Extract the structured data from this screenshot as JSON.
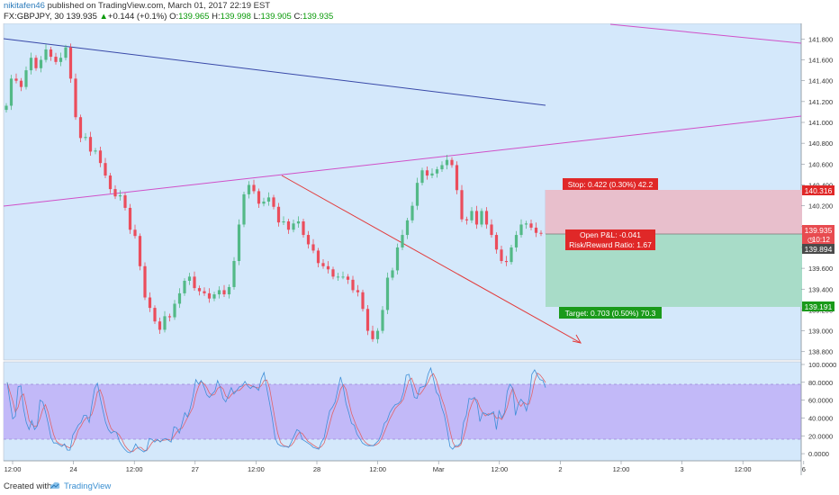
{
  "header": {
    "user": "nikitafen46",
    "published": "published on TradingView.com, March 01, 2017 22:19 EST",
    "symbol": "FX:GBPJPY, 30",
    "last": "139.935",
    "change": "+0.144 (+0.1%)",
    "open_label": "O:",
    "open": "139.965",
    "high_label": "H:",
    "high": "139.998",
    "low_label": "L:",
    "low": "139.905",
    "close_label": "C:",
    "close": "139.935"
  },
  "price_axis": {
    "labels": [
      "141.800",
      "141.600",
      "141.400",
      "141.200",
      "141.000",
      "140.800",
      "140.600",
      "140.400",
      "140.200",
      "140.000",
      "139.800",
      "139.600",
      "139.400",
      "139.200",
      "139.000",
      "138.800"
    ],
    "markers": {
      "stop": "140.316",
      "last": "139.935",
      "countdown": "10:12",
      "entry": "139.894",
      "target": "139.191"
    }
  },
  "oscillator_axis": {
    "labels": [
      "100.0000",
      "80.0000",
      "60.0000",
      "40.0000",
      "20.0000",
      "0.0000"
    ]
  },
  "time_axis": {
    "labels": [
      "12:00",
      "24",
      "12:00",
      "27",
      "12:00",
      "28",
      "12:00",
      "Mar",
      "12:00",
      "2",
      "12:00",
      "3",
      "12:00",
      "6"
    ]
  },
  "position_tool": {
    "stop_label": "Stop: 0.422 (0.30%) 42.2",
    "pnl_label": "Open P&L: -0.041",
    "rr_label": "Risk/Reward Ratio: 1.67",
    "target_label": "Target: 0.703 (0.50%) 70.3"
  },
  "footer": {
    "created_with": "Created with",
    "brand": "TradingView"
  },
  "colors": {
    "pane_bg": "#d4e8fb",
    "bull": "#53b987",
    "bear": "#eb4d5c",
    "stop_zone": "#e8bfcc",
    "target_zone": "#a8dcc8",
    "stoch_band": "#c2b9f8",
    "trend_blue": "#3848a8",
    "trend_magenta": "#d050c8",
    "arrow_red": "#e23b3b",
    "stop_box": "#e02828",
    "target_box": "#1a9a1a"
  },
  "chart_data": {
    "type": "candlestick",
    "ylim": [
      138.72,
      141.95
    ],
    "oscillator_ylim": [
      -8,
      103
    ],
    "closes": [
      141.16,
      141.42,
      141.4,
      141.34,
      141.5,
      141.62,
      141.52,
      141.6,
      141.7,
      141.63,
      141.58,
      141.62,
      141.72,
      141.42,
      141.05,
      140.85,
      140.86,
      140.72,
      140.73,
      140.61,
      140.49,
      140.36,
      140.29,
      140.3,
      140.18,
      139.97,
      139.91,
      139.62,
      139.32,
      139.22,
      139.09,
      139.01,
      139.14,
      139.13,
      139.26,
      139.36,
      139.48,
      139.52,
      139.41,
      139.38,
      139.36,
      139.31,
      139.35,
      139.39,
      139.35,
      139.42,
      139.67,
      140.02,
      140.31,
      140.4,
      140.34,
      140.22,
      140.24,
      140.28,
      140.19,
      140.04,
      140.05,
      139.97,
      140.03,
      140.05,
      139.92,
      139.83,
      139.77,
      139.65,
      139.62,
      139.59,
      139.52,
      139.52,
      139.52,
      139.49,
      139.39,
      139.37,
      139.21,
      139.0,
      138.92,
      139.0,
      139.2,
      139.51,
      139.58,
      139.8,
      139.92,
      140.06,
      140.2,
      140.42,
      140.54,
      140.49,
      140.51,
      140.55,
      140.59,
      140.64,
      140.59,
      140.35,
      140.07,
      140.06,
      140.15,
      140.02,
      140.15,
      140.02,
      139.92,
      139.78,
      139.67,
      139.66,
      139.8,
      139.92,
      140.02,
      140.03,
      139.99,
      139.94,
      139.935
    ],
    "stochastic_k": [
      80,
      59,
      39,
      42,
      75,
      76,
      50,
      35,
      27,
      37,
      27,
      31,
      60,
      58,
      47,
      34,
      18,
      12,
      12,
      10,
      8,
      11,
      4,
      4,
      21,
      26,
      32,
      35,
      43,
      43,
      35,
      55,
      73,
      79,
      63,
      49,
      35,
      27,
      23,
      25,
      24,
      14,
      9,
      5,
      2,
      1,
      4,
      11,
      6,
      4,
      2,
      4,
      17,
      16,
      13,
      16,
      13,
      16,
      17,
      15,
      13,
      30,
      29,
      23,
      34,
      46,
      41,
      51,
      64,
      83,
      78,
      82,
      75,
      66,
      63,
      67,
      70,
      82,
      74,
      62,
      58,
      66,
      74,
      67,
      71,
      75,
      76,
      81,
      76,
      73,
      76,
      74,
      71,
      84,
      91,
      73,
      57,
      40,
      18,
      11,
      9,
      8,
      8,
      7,
      13,
      20,
      27,
      25,
      16,
      14,
      12,
      10,
      7,
      6,
      5,
      13,
      18,
      34,
      48,
      52,
      58,
      72,
      86,
      74,
      56,
      46,
      34,
      32,
      22,
      17,
      12,
      10,
      9,
      9,
      9,
      12,
      15,
      23,
      34,
      37,
      46,
      51,
      55,
      56,
      59,
      69,
      88,
      89,
      77,
      63,
      62,
      74,
      75,
      76,
      89,
      96,
      84,
      69,
      65,
      52,
      43,
      27,
      8,
      5,
      9,
      9,
      12,
      35,
      43,
      62,
      61,
      63,
      56,
      36,
      46,
      45,
      43,
      45,
      47,
      27,
      48,
      40,
      46,
      70,
      78,
      73,
      43,
      55,
      61,
      57,
      48,
      62,
      89,
      94,
      88,
      83,
      82,
      74
    ],
    "position": {
      "entry": 139.894,
      "stop": 140.316,
      "target": 139.191
    },
    "stochastic_band": [
      20,
      80
    ]
  }
}
